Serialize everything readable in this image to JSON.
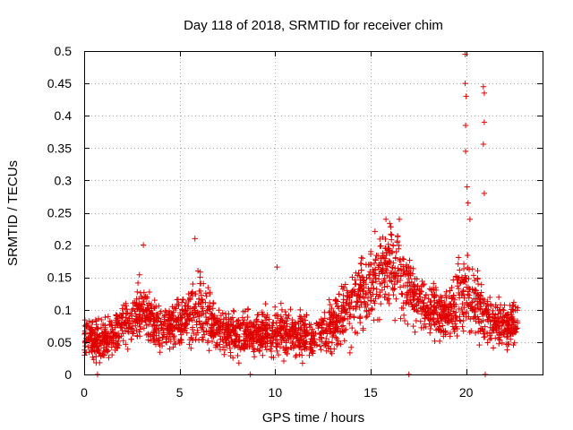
{
  "chart_data": {
    "type": "scatter",
    "title": "Day 118 of 2018, SRMTID for receiver chim",
    "xlabel": "GPS time / hours",
    "ylabel": "SRMTID / TECUs",
    "xlim": [
      0,
      24
    ],
    "ylim": [
      0,
      0.5
    ],
    "xticks": [
      0,
      5,
      10,
      15,
      20
    ],
    "xtick_labels": [
      "0",
      "5",
      "10",
      "15",
      "20"
    ],
    "yticks": [
      0,
      0.05,
      0.1,
      0.15,
      0.2,
      0.25,
      0.3,
      0.35,
      0.4,
      0.45,
      0.5
    ],
    "ytick_labels": [
      "0",
      "0.05",
      "0.1",
      "0.15",
      "0.2",
      "0.25",
      "0.3",
      "0.35",
      "0.4",
      "0.45",
      "0.5"
    ],
    "grid": true,
    "marker": "plus",
    "color": "#e00000",
    "series": [
      {
        "name": "SRMTID",
        "description": "dense scatter of SRMTID values vs GPS time; baseline ~0.05-0.1, rises to ~0.15-0.24 around 15-17 h, spikes up to ~0.45 near 20-21 h",
        "envelope": [
          {
            "x": 0.0,
            "mean": 0.055,
            "spread": 0.03
          },
          {
            "x": 1.0,
            "mean": 0.05,
            "spread": 0.03
          },
          {
            "x": 2.0,
            "mean": 0.075,
            "spread": 0.03
          },
          {
            "x": 3.0,
            "mean": 0.1,
            "spread": 0.04
          },
          {
            "x": 4.0,
            "mean": 0.07,
            "spread": 0.03
          },
          {
            "x": 5.0,
            "mean": 0.085,
            "spread": 0.035
          },
          {
            "x": 6.0,
            "mean": 0.1,
            "spread": 0.05
          },
          {
            "x": 7.0,
            "mean": 0.07,
            "spread": 0.03
          },
          {
            "x": 8.0,
            "mean": 0.065,
            "spread": 0.03
          },
          {
            "x": 9.0,
            "mean": 0.065,
            "spread": 0.03
          },
          {
            "x": 10.0,
            "mean": 0.065,
            "spread": 0.03
          },
          {
            "x": 11.0,
            "mean": 0.065,
            "spread": 0.03
          },
          {
            "x": 12.0,
            "mean": 0.055,
            "spread": 0.03
          },
          {
            "x": 13.0,
            "mean": 0.075,
            "spread": 0.035
          },
          {
            "x": 14.0,
            "mean": 0.11,
            "spread": 0.045
          },
          {
            "x": 15.0,
            "mean": 0.14,
            "spread": 0.05
          },
          {
            "x": 16.0,
            "mean": 0.17,
            "spread": 0.055
          },
          {
            "x": 17.0,
            "mean": 0.13,
            "spread": 0.045
          },
          {
            "x": 18.0,
            "mean": 0.1,
            "spread": 0.035
          },
          {
            "x": 19.0,
            "mean": 0.09,
            "spread": 0.03
          },
          {
            "x": 20.0,
            "mean": 0.13,
            "spread": 0.06
          },
          {
            "x": 21.0,
            "mean": 0.09,
            "spread": 0.04
          },
          {
            "x": 22.0,
            "mean": 0.075,
            "spread": 0.03
          },
          {
            "x": 22.7,
            "mean": 0.08,
            "spread": 0.03
          }
        ],
        "notable_points": [
          {
            "x": 3.1,
            "y": 0.2
          },
          {
            "x": 5.8,
            "y": 0.21
          },
          {
            "x": 10.1,
            "y": 0.166
          },
          {
            "x": 15.8,
            "y": 0.24
          },
          {
            "x": 16.5,
            "y": 0.24
          },
          {
            "x": 19.95,
            "y": 0.495
          },
          {
            "x": 19.95,
            "y": 0.45
          },
          {
            "x": 20.0,
            "y": 0.43
          },
          {
            "x": 19.97,
            "y": 0.385
          },
          {
            "x": 19.97,
            "y": 0.345
          },
          {
            "x": 20.05,
            "y": 0.29
          },
          {
            "x": 20.1,
            "y": 0.265
          },
          {
            "x": 20.2,
            "y": 0.24
          },
          {
            "x": 20.9,
            "y": 0.445
          },
          {
            "x": 20.95,
            "y": 0.435
          },
          {
            "x": 20.95,
            "y": 0.39
          },
          {
            "x": 20.9,
            "y": 0.356
          },
          {
            "x": 20.95,
            "y": 0.28
          },
          {
            "x": 0.7,
            "y": 0.0
          },
          {
            "x": 8.7,
            "y": 0.0
          },
          {
            "x": 17.0,
            "y": 0.0
          },
          {
            "x": 21.0,
            "y": 0.0
          }
        ]
      }
    ]
  }
}
